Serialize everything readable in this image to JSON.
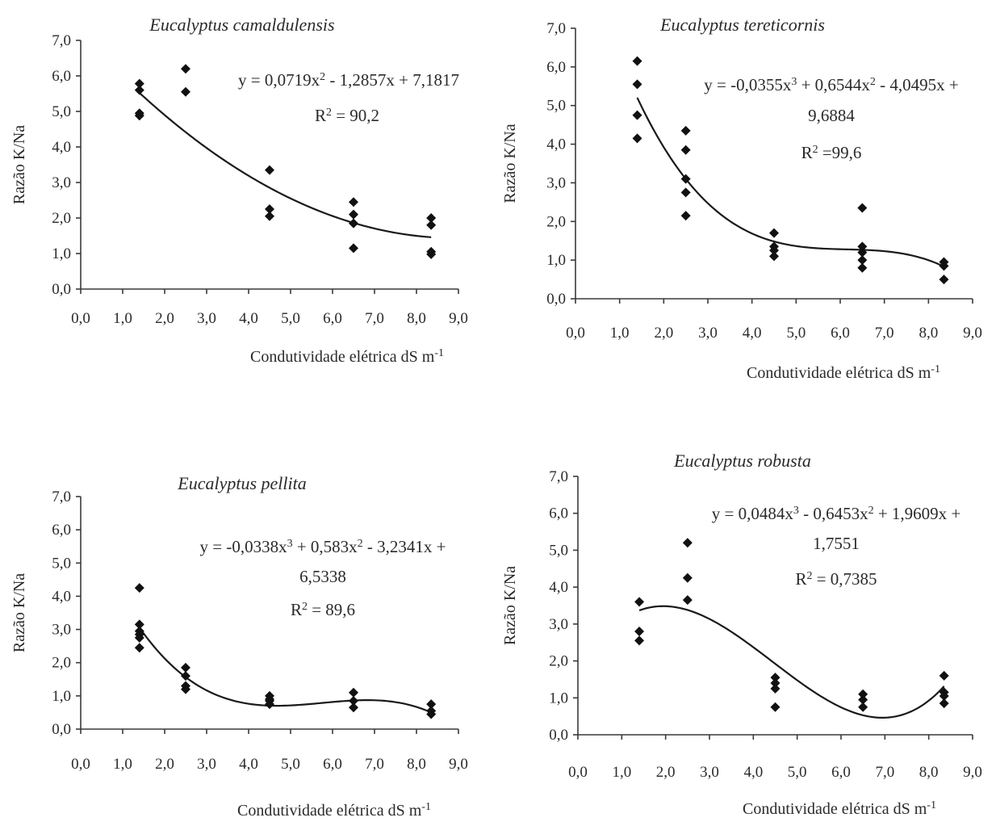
{
  "chart_data": [
    {
      "type": "scatter",
      "title": "Eucalyptus camaldulensis",
      "xlabel": "Condutividade elétrica dS m",
      "xlabel_sup": "-1",
      "ylabel": "Razão K/Na",
      "xlim": [
        0,
        9
      ],
      "ylim": [
        0,
        7
      ],
      "x_ticks": [
        "0,0",
        "1,0",
        "2,0",
        "3,0",
        "4,0",
        "5,0",
        "6,0",
        "7,0",
        "8,0",
        "9,0"
      ],
      "y_ticks": [
        "0,0",
        "1,0",
        "2,0",
        "3,0",
        "4,0",
        "5,0",
        "6,0",
        "7,0"
      ],
      "points": [
        [
          1.4,
          5.78
        ],
        [
          1.4,
          5.6
        ],
        [
          1.4,
          4.95
        ],
        [
          1.4,
          4.88
        ],
        [
          2.5,
          6.2
        ],
        [
          2.5,
          5.55
        ],
        [
          4.5,
          3.35
        ],
        [
          4.5,
          2.25
        ],
        [
          4.5,
          2.05
        ],
        [
          6.5,
          2.45
        ],
        [
          6.5,
          2.1
        ],
        [
          6.5,
          1.85
        ],
        [
          6.5,
          1.15
        ],
        [
          8.35,
          2.0
        ],
        [
          8.35,
          1.8
        ],
        [
          8.35,
          1.05
        ],
        [
          8.35,
          0.98
        ]
      ],
      "fit_coef": [
        7.1817,
        -1.2857,
        0.0719,
        0
      ],
      "fit_range": [
        1.4,
        8.35
      ],
      "equation": [
        "y = 0,0719x",
        "2",
        " - 1,2857x + 7,1817"
      ],
      "equation2": "",
      "r2": [
        "R",
        "2",
        " = 90,2"
      ]
    },
    {
      "type": "scatter",
      "title": "Eucalyptus tereticornis",
      "xlabel": "Condutividade elétrica dS m",
      "xlabel_sup": "-1",
      "ylabel": "Razão K/Na",
      "xlim": [
        0,
        9
      ],
      "ylim": [
        0,
        7
      ],
      "x_ticks": [
        "0,0",
        "1,0",
        "2,0",
        "3,0",
        "4,0",
        "5,0",
        "6,0",
        "7,0",
        "8,0",
        "9,0"
      ],
      "y_ticks": [
        "0,0",
        "1,0",
        "2,0",
        "3,0",
        "4,0",
        "5,0",
        "6,0",
        "7,0"
      ],
      "points": [
        [
          1.4,
          6.15
        ],
        [
          1.4,
          5.55
        ],
        [
          1.4,
          4.75
        ],
        [
          1.4,
          4.15
        ],
        [
          2.5,
          4.35
        ],
        [
          2.5,
          3.85
        ],
        [
          2.5,
          3.1
        ],
        [
          2.5,
          2.75
        ],
        [
          2.5,
          2.15
        ],
        [
          4.5,
          1.7
        ],
        [
          4.5,
          1.35
        ],
        [
          4.5,
          1.25
        ],
        [
          4.5,
          1.1
        ],
        [
          6.5,
          2.35
        ],
        [
          6.5,
          1.35
        ],
        [
          6.5,
          1.2
        ],
        [
          6.5,
          1.0
        ],
        [
          6.5,
          0.8
        ],
        [
          8.35,
          0.95
        ],
        [
          8.35,
          0.85
        ],
        [
          8.35,
          0.5
        ]
      ],
      "fit_coef": [
        9.6884,
        -4.0495,
        0.6544,
        -0.0355
      ],
      "fit_range": [
        1.4,
        8.35
      ],
      "equation": [
        "y = -0,0355x",
        "3",
        " + 0,6544x",
        "2",
        " - 4,0495x +"
      ],
      "equation2": "9,6884",
      "r2": [
        "R",
        "2",
        " =99,6"
      ]
    },
    {
      "type": "scatter",
      "title": "Eucalyptus pellita",
      "xlabel": "Condutividade elétrica dS m",
      "xlabel_sup": "-1",
      "ylabel": "Razão K/Na",
      "xlim": [
        0,
        9
      ],
      "ylim": [
        0,
        7
      ],
      "x_ticks": [
        "0,0",
        "1,0",
        "2,0",
        "3,0",
        "4,0",
        "5,0",
        "6,0",
        "7,0",
        "8,0",
        "9,0"
      ],
      "y_ticks": [
        "0,0",
        "1,0",
        "2,0",
        "3,0",
        "4,0",
        "5,0",
        "6,0",
        "7,0"
      ],
      "points": [
        [
          1.4,
          4.25
        ],
        [
          1.4,
          3.15
        ],
        [
          1.4,
          2.95
        ],
        [
          1.4,
          2.85
        ],
        [
          1.4,
          2.75
        ],
        [
          1.4,
          2.45
        ],
        [
          2.5,
          1.85
        ],
        [
          2.5,
          1.6
        ],
        [
          2.5,
          1.3
        ],
        [
          2.5,
          1.2
        ],
        [
          4.5,
          1.0
        ],
        [
          4.5,
          0.9
        ],
        [
          4.5,
          0.85
        ],
        [
          4.5,
          0.75
        ],
        [
          6.5,
          1.1
        ],
        [
          6.5,
          0.85
        ],
        [
          6.5,
          0.65
        ],
        [
          8.35,
          0.75
        ],
        [
          8.35,
          0.55
        ],
        [
          8.35,
          0.45
        ]
      ],
      "fit_coef": [
        6.5338,
        -3.2341,
        0.583,
        -0.0338
      ],
      "fit_range": [
        1.4,
        8.35
      ],
      "equation": [
        "y = -0,0338x",
        "3",
        " + 0,583x",
        "2",
        " - 3,2341x +"
      ],
      "equation2": "6,5338",
      "r2": [
        "R",
        "2",
        " = 89,6"
      ]
    },
    {
      "type": "scatter",
      "title": "Eucalyptus robusta",
      "xlabel": "Condutividade elétrica dS m",
      "xlabel_sup": "-1",
      "ylabel": "Razão K/Na",
      "xlim": [
        0,
        9
      ],
      "ylim": [
        0,
        7
      ],
      "x_ticks": [
        "0,0",
        "1,0",
        "2,0",
        "3,0",
        "4,0",
        "5,0",
        "6,0",
        "7,0",
        "8,0",
        "9,0"
      ],
      "y_ticks": [
        "0,0",
        "1,0",
        "2,0",
        "3,0",
        "4,0",
        "5,0",
        "6,0",
        "7,0"
      ],
      "points": [
        [
          1.4,
          3.6
        ],
        [
          1.4,
          2.8
        ],
        [
          1.4,
          2.55
        ],
        [
          2.5,
          5.2
        ],
        [
          2.5,
          4.25
        ],
        [
          2.5,
          3.65
        ],
        [
          4.5,
          1.55
        ],
        [
          4.5,
          1.4
        ],
        [
          4.5,
          1.25
        ],
        [
          4.5,
          0.75
        ],
        [
          6.5,
          1.1
        ],
        [
          6.5,
          0.95
        ],
        [
          6.5,
          0.75
        ],
        [
          8.35,
          1.6
        ],
        [
          8.35,
          1.15
        ],
        [
          8.35,
          1.05
        ],
        [
          8.35,
          0.85
        ]
      ],
      "fit_coef": [
        1.7551,
        1.9609,
        -0.6453,
        0.0484
      ],
      "fit_range": [
        1.4,
        8.35
      ],
      "equation": [
        "y = 0,0484x",
        "3",
        " - 0,6453x",
        "2",
        " + 1,9609x +"
      ],
      "equation2": "1,7551",
      "r2": [
        "R",
        "2",
        " = 0,7385"
      ]
    }
  ]
}
